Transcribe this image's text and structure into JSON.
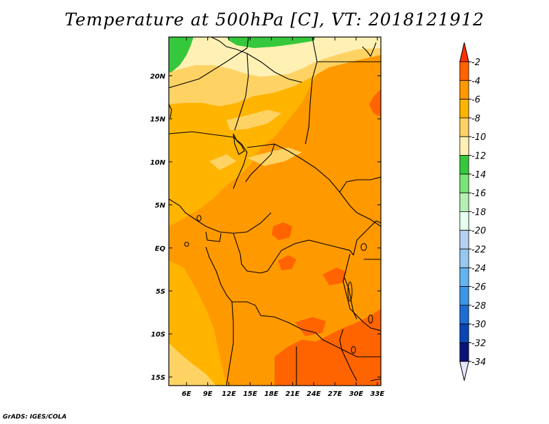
{
  "title": "Temperature at 500hPa [C], VT: 2018121912",
  "credit": "GrADS: IGES/COLA",
  "lon_ticks": [
    "6E",
    "9E",
    "12E",
    "15E",
    "18E",
    "21E",
    "24E",
    "27E",
    "30E",
    "33E"
  ],
  "lat_ticks": [
    "20N",
    "15N",
    "10N",
    "5N",
    "EQ",
    "5S",
    "10S",
    "15S"
  ],
  "colorbar": {
    "labels": [
      "-2",
      "-4",
      "-6",
      "-8",
      "-10",
      "-12",
      "-14",
      "-16",
      "-18",
      "-20",
      "-22",
      "-24",
      "-26",
      "-28",
      "-30",
      "-32",
      "-34"
    ],
    "colors": [
      "#ff3200",
      "#ff6400",
      "#ff9900",
      "#ffb400",
      "#ffd264",
      "#fff0b4",
      "#36c83c",
      "#78e678",
      "#b4f0b4",
      "#e6fff0",
      "#b4d2f0",
      "#96c8f0",
      "#64b4f0",
      "#3c96e6",
      "#1e6ed2",
      "#0a46b4",
      "#0a1478"
    ],
    "over_color": "#ff3200",
    "under_color": "#e6e6ff"
  },
  "chart_data": {
    "type": "heatmap",
    "variable": "Temperature at 500hPa",
    "units": "C",
    "valid_time": "2018121912",
    "lon_range": [
      3.5,
      33.5
    ],
    "lat_range": [
      -16,
      24.5
    ],
    "levels": [
      -34,
      -32,
      -30,
      -28,
      -26,
      -24,
      -22,
      -20,
      -18,
      -16,
      -14,
      -12,
      -10,
      -8,
      -6,
      -4,
      -2
    ],
    "regions": [
      {
        "name": "far north-west green",
        "range_C": [
          -14,
          -12
        ]
      },
      {
        "name": "northern belt 15N-25N",
        "range_C": [
          -10,
          -8
        ]
      },
      {
        "name": "central 5N-15N",
        "range_C": [
          -8,
          -6
        ]
      },
      {
        "name": "Congo basin and east",
        "range_C": [
          -6,
          -4
        ]
      },
      {
        "name": "southern hotspots 8S-16S",
        "range_C": [
          -4,
          -2
        ]
      }
    ]
  }
}
